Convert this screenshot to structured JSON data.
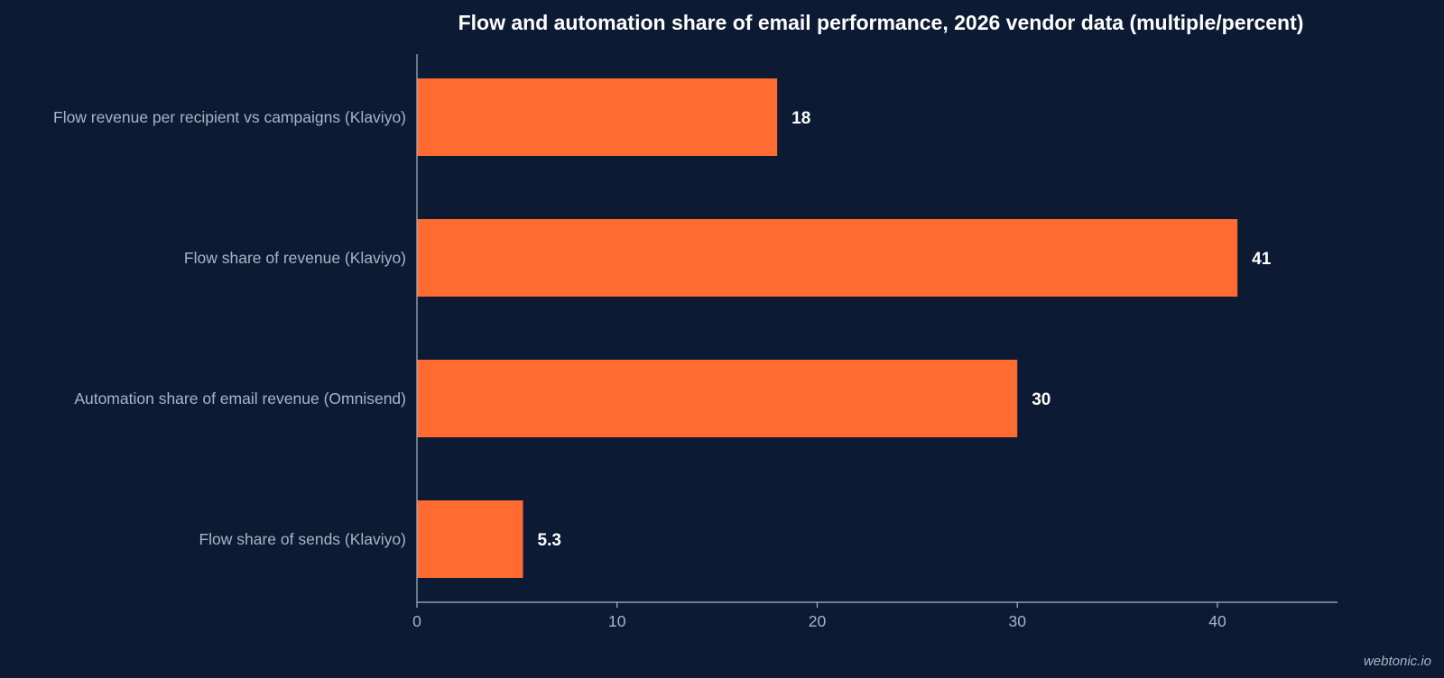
{
  "chart_data": {
    "type": "bar",
    "orientation": "horizontal",
    "title": "Flow and automation share of email performance, 2026 vendor data (multiple/percent)",
    "categories": [
      "Flow revenue per recipient vs campaigns (Klaviyo)",
      "Flow share of revenue (Klaviyo)",
      "Automation share of email revenue (Omnisend)",
      "Flow share of sends (Klaviyo)"
    ],
    "values": [
      18,
      41,
      30,
      5.3
    ],
    "value_labels": [
      "18",
      "41",
      "30",
      "5.3"
    ],
    "xlim": [
      0,
      46
    ],
    "xticks": [
      0,
      10,
      20,
      30,
      40
    ],
    "xtick_labels": [
      "0",
      "10",
      "20",
      "30",
      "40"
    ],
    "xlabel": "",
    "ylabel": "",
    "grid": false,
    "legend": "none"
  },
  "colors": {
    "background": "#0c1b33",
    "bar": "#ff6b30",
    "axis": "#a9b4c6",
    "text": "#ffffff",
    "muted_text": "#a9b4c6"
  },
  "watermark": "webtonic.io"
}
